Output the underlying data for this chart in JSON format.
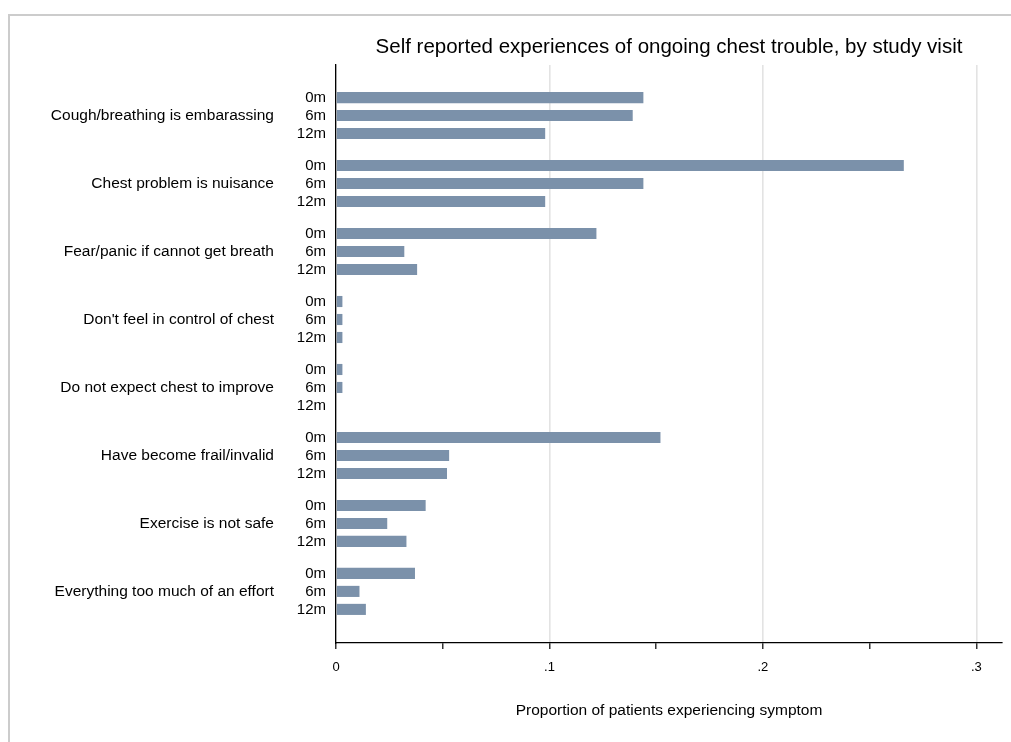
{
  "chart_data": {
    "type": "bar",
    "orientation": "horizontal",
    "title": "Self reported experiences of ongoing chest trouble, by study visit",
    "xlabel": "Proportion of patients experiencing symptom",
    "categories": [
      "Cough/breathing is embarassing",
      "Chest problem is nuisance",
      "Fear/panic if cannot get breath",
      "Don't feel in control of chest",
      "Do not expect chest to improve",
      "Have become frail/invalid",
      "Exercise is not safe",
      "Everything too much of an effort"
    ],
    "series": [
      {
        "name": "0m",
        "color": "#7b91aa",
        "values": [
          0.144,
          0.266,
          0.122,
          0.003,
          0.003,
          0.152,
          0.042,
          0.037
        ]
      },
      {
        "name": "6m",
        "color": "#7b91aa",
        "values": [
          0.139,
          0.144,
          0.032,
          0.003,
          0.003,
          0.053,
          0.024,
          0.011
        ]
      },
      {
        "name": "12m",
        "color": "#7b91aa",
        "values": [
          0.098,
          0.098,
          0.038,
          0.003,
          0,
          0.052,
          0.033,
          0.014
        ]
      }
    ],
    "xlim": [
      0,
      0.312
    ],
    "xticks": [
      0,
      {
        "value": 0.05,
        "label": null
      },
      {
        "value": 0.1,
        "label": ".1"
      },
      {
        "value": 0.15,
        "label": null
      },
      {
        "value": 0.2,
        "label": ".2"
      },
      {
        "value": 0.25,
        "label": null
      },
      {
        "value": 0.3,
        "label": ".3"
      }
    ],
    "grid": "x"
  }
}
